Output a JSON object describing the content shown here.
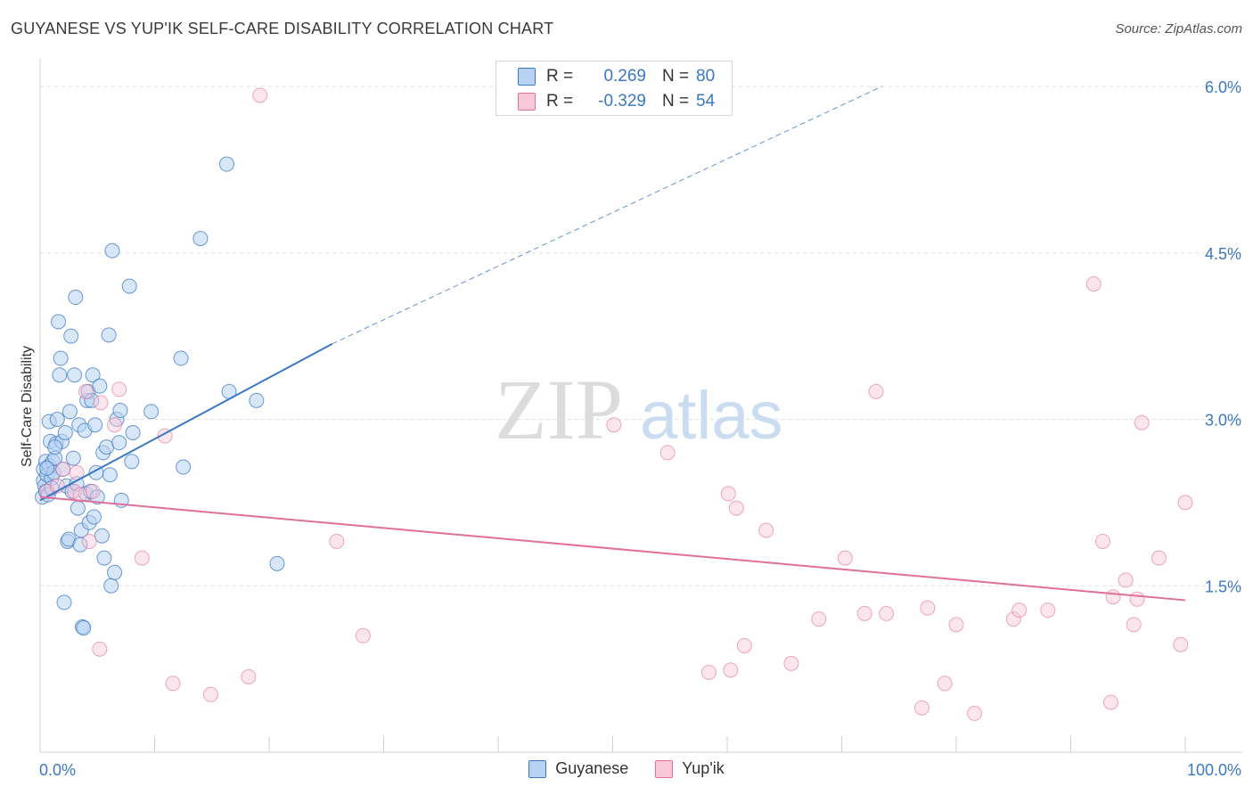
{
  "title": "GUYANESE VS YUP'IK SELF-CARE DISABILITY CORRELATION CHART",
  "source": "Source: ZipAtlas.com",
  "watermark": {
    "zip": "ZIP",
    "atlas": "atlas"
  },
  "colors": {
    "blue": "#3b78c4",
    "blue_fill": "#b8d3f2",
    "pink": "#e0709a",
    "pink_fill": "#f8c8d8",
    "grid": "#e2e2e2"
  },
  "legend_top": [
    {
      "r_label": "R =",
      "r_value": "0.269",
      "n_label": "N =",
      "n_value": "80"
    },
    {
      "r_label": "R =",
      "r_value": "-0.329",
      "n_label": "N =",
      "n_value": "54"
    }
  ],
  "legend_bottom": [
    "Guyanese",
    "Yup'ik"
  ],
  "chart_data": {
    "type": "scatter",
    "xlabel": "",
    "ylabel": "Self-Care Disability",
    "xlim": [
      0,
      100
    ],
    "ylim": [
      0,
      6.2
    ],
    "x_tick_labels": [
      "0.0%",
      "100.0%"
    ],
    "y_ticks": [
      1.5,
      3.0,
      4.5,
      6.0
    ],
    "y_tick_labels": [
      "1.5%",
      "3.0%",
      "4.5%",
      "6.0%"
    ],
    "grid": true,
    "series": [
      {
        "name": "Guyanese",
        "r": 0.269,
        "n": 80,
        "trend": {
          "x0": 0,
          "y0": 2.27,
          "x1": 25.5,
          "y1": 3.68,
          "dash_to_x": 73.5,
          "dash_to_y": 6.0
        },
        "points": [
          [
            0.2,
            2.3
          ],
          [
            0.3,
            2.45
          ],
          [
            0.3,
            2.55
          ],
          [
            0.4,
            2.4
          ],
          [
            0.5,
            2.62
          ],
          [
            0.5,
            2.35
          ],
          [
            0.6,
            2.5
          ],
          [
            0.7,
            2.32
          ],
          [
            0.8,
            2.58
          ],
          [
            0.8,
            2.98
          ],
          [
            0.9,
            2.8
          ],
          [
            1.0,
            2.47
          ],
          [
            1.0,
            2.38
          ],
          [
            1.1,
            2.62
          ],
          [
            1.2,
            2.52
          ],
          [
            1.3,
            2.65
          ],
          [
            1.4,
            2.78
          ],
          [
            1.5,
            3.0
          ],
          [
            1.6,
            3.88
          ],
          [
            1.7,
            3.4
          ],
          [
            1.8,
            3.55
          ],
          [
            1.9,
            2.8
          ],
          [
            2.0,
            2.55
          ],
          [
            2.1,
            1.35
          ],
          [
            2.2,
            2.88
          ],
          [
            2.3,
            2.4
          ],
          [
            2.4,
            1.9
          ],
          [
            2.5,
            1.92
          ],
          [
            2.6,
            3.07
          ],
          [
            2.7,
            3.75
          ],
          [
            2.8,
            2.35
          ],
          [
            2.9,
            2.65
          ],
          [
            3.0,
            3.4
          ],
          [
            3.1,
            4.1
          ],
          [
            3.2,
            2.42
          ],
          [
            3.3,
            2.2
          ],
          [
            3.4,
            2.95
          ],
          [
            3.5,
            1.87
          ],
          [
            3.6,
            2.0
          ],
          [
            3.7,
            1.13
          ],
          [
            3.8,
            1.12
          ],
          [
            3.9,
            2.9
          ],
          [
            4.0,
            2.33
          ],
          [
            4.1,
            3.17
          ],
          [
            4.2,
            3.25
          ],
          [
            4.3,
            2.07
          ],
          [
            4.4,
            2.35
          ],
          [
            4.5,
            3.17
          ],
          [
            4.6,
            3.4
          ],
          [
            4.7,
            2.12
          ],
          [
            4.8,
            2.95
          ],
          [
            4.9,
            2.52
          ],
          [
            5.0,
            2.3
          ],
          [
            5.2,
            3.3
          ],
          [
            5.4,
            1.95
          ],
          [
            5.5,
            2.7
          ],
          [
            5.6,
            1.75
          ],
          [
            5.8,
            2.75
          ],
          [
            6.0,
            3.76
          ],
          [
            6.1,
            2.5
          ],
          [
            6.2,
            1.5
          ],
          [
            6.3,
            4.52
          ],
          [
            6.5,
            1.62
          ],
          [
            6.7,
            3.0
          ],
          [
            6.9,
            2.79
          ],
          [
            7.0,
            3.08
          ],
          [
            7.1,
            2.27
          ],
          [
            7.8,
            4.2
          ],
          [
            8.0,
            2.62
          ],
          [
            8.1,
            2.88
          ],
          [
            9.7,
            3.07
          ],
          [
            12.3,
            3.55
          ],
          [
            12.5,
            2.57
          ],
          [
            14.0,
            4.63
          ],
          [
            16.3,
            5.3
          ],
          [
            16.5,
            3.25
          ],
          [
            18.9,
            3.17
          ],
          [
            20.7,
            1.7
          ],
          [
            1.3,
            2.75
          ],
          [
            0.6,
            2.56
          ]
        ]
      },
      {
        "name": "Yup'ik",
        "r": -0.329,
        "n": 54,
        "trend": {
          "x0": 0,
          "y0": 2.3,
          "x1": 100,
          "y1": 1.37
        },
        "points": [
          [
            0.6,
            2.35
          ],
          [
            1.5,
            2.4
          ],
          [
            2.0,
            2.55
          ],
          [
            3.0,
            2.35
          ],
          [
            3.2,
            2.52
          ],
          [
            3.5,
            2.32
          ],
          [
            4.0,
            3.25
          ],
          [
            4.3,
            1.9
          ],
          [
            4.6,
            2.35
          ],
          [
            5.2,
            0.93
          ],
          [
            5.3,
            3.15
          ],
          [
            6.5,
            2.95
          ],
          [
            6.9,
            3.27
          ],
          [
            8.9,
            1.75
          ],
          [
            10.9,
            2.85
          ],
          [
            11.6,
            0.62
          ],
          [
            14.9,
            0.52
          ],
          [
            18.2,
            0.68
          ],
          [
            19.2,
            5.92
          ],
          [
            25.9,
            1.9
          ],
          [
            28.2,
            1.05
          ],
          [
            50.1,
            2.95
          ],
          [
            54.8,
            2.7
          ],
          [
            58.4,
            0.72
          ],
          [
            60.1,
            2.33
          ],
          [
            60.3,
            0.74
          ],
          [
            60.8,
            2.2
          ],
          [
            61.5,
            0.96
          ],
          [
            63.4,
            2.0
          ],
          [
            65.6,
            0.8
          ],
          [
            68.0,
            1.2
          ],
          [
            70.3,
            1.75
          ],
          [
            72.0,
            1.25
          ],
          [
            73.0,
            3.25
          ],
          [
            73.9,
            1.25
          ],
          [
            77.0,
            0.4
          ],
          [
            77.5,
            1.3
          ],
          [
            79.0,
            0.62
          ],
          [
            80.0,
            1.15
          ],
          [
            81.6,
            0.35
          ],
          [
            85.0,
            1.2
          ],
          [
            85.5,
            1.28
          ],
          [
            88.0,
            1.28
          ],
          [
            92.0,
            4.22
          ],
          [
            92.8,
            1.9
          ],
          [
            93.5,
            0.45
          ],
          [
            93.7,
            1.4
          ],
          [
            94.8,
            1.55
          ],
          [
            95.5,
            1.15
          ],
          [
            95.8,
            1.38
          ],
          [
            96.2,
            2.97
          ],
          [
            97.7,
            1.75
          ],
          [
            99.6,
            0.97
          ],
          [
            100.0,
            2.25
          ]
        ]
      }
    ]
  }
}
